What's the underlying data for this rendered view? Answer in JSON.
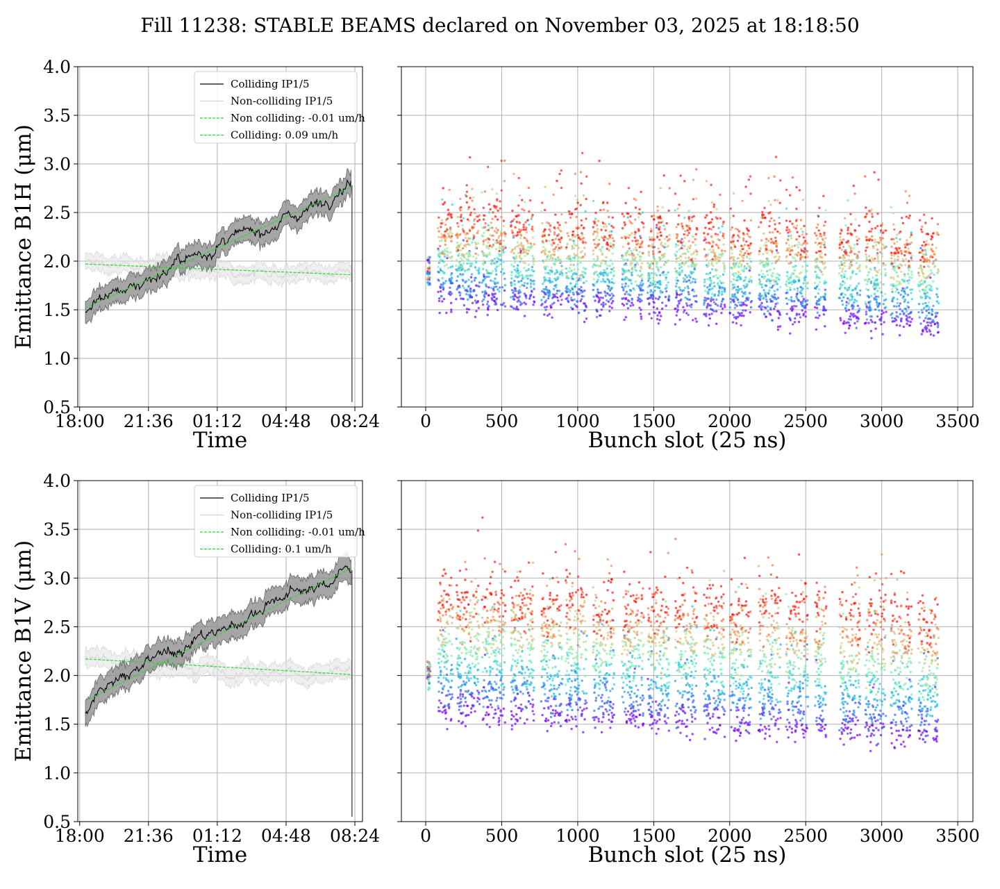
{
  "figure": {
    "title": "Fill 11238: STABLE BEAMS declared on November 03, 2025 at 18:18:50"
  },
  "chart_data": [
    {
      "id": "h-time",
      "type": "line",
      "xlabel": "Time",
      "ylabel": "Emittance B1H (μm)",
      "x_ticks": [
        "18:00",
        "21:36",
        "01:12",
        "04:48",
        "08:24"
      ],
      "x_ticks_hours": [
        0,
        3.6,
        7.2,
        10.8,
        14.4
      ],
      "xlim_hours": [
        -0.1,
        14.8
      ],
      "ylim": [
        0.5,
        4.0
      ],
      "y_ticks": [
        "0.5",
        "1.0",
        "1.5",
        "2.0",
        "2.5",
        "3.0",
        "3.5",
        "4.0"
      ],
      "y_tick_values": [
        0.5,
        1.0,
        1.5,
        2.0,
        2.5,
        3.0,
        3.5,
        4.0
      ],
      "grid": true,
      "legend_position": "top-right",
      "legend": [
        "Colliding IP1/5",
        "Non-colliding IP1/5",
        "Non colliding: -0.01 um/h",
        "Colliding: 0.09 um/h"
      ],
      "series": [
        {
          "name": "Colliding IP1/5",
          "style": "solid",
          "color": "#000000",
          "band_color": "#888888",
          "x_hours": [
            0.3,
            1,
            2,
            3,
            4,
            5,
            6,
            7,
            8,
            9,
            10,
            11,
            12,
            13,
            14,
            14.2
          ],
          "y": [
            1.45,
            1.62,
            1.7,
            1.76,
            1.86,
            1.96,
            2.05,
            2.13,
            2.22,
            2.3,
            2.37,
            2.45,
            2.55,
            2.65,
            2.82,
            2.78
          ],
          "band_halfwidth": 0.12
        },
        {
          "name": "Non-colliding IP1/5",
          "style": "solid",
          "color": "#d3d3d3",
          "band_color": "#e4e4e4",
          "x_hours": [
            0.3,
            1,
            2,
            3,
            4,
            5,
            6,
            7,
            8,
            9,
            10,
            11,
            12,
            13,
            14,
            14.2
          ],
          "y": [
            1.97,
            1.99,
            1.94,
            1.96,
            1.93,
            1.95,
            1.91,
            1.9,
            1.93,
            1.88,
            1.9,
            1.86,
            1.89,
            1.87,
            1.9,
            1.89
          ],
          "band_halfwidth": 0.08
        },
        {
          "name": "Non colliding: -0.01 um/h",
          "style": "dashed",
          "color": "#22dd22",
          "x_hours": [
            0.3,
            14.2
          ],
          "y": [
            1.97,
            1.86
          ]
        },
        {
          "name": "Colliding: 0.09 um/h",
          "style": "dashed",
          "color": "#22dd22",
          "x_hours": [
            0.3,
            14.2
          ],
          "y": [
            1.52,
            2.76
          ]
        }
      ]
    },
    {
      "id": "h-bunch",
      "type": "scatter",
      "xlabel": "Bunch slot (25 ns)",
      "ylabel": "",
      "x_ticks": [
        "0",
        "500",
        "1000",
        "1500",
        "2000",
        "2500",
        "3000",
        "3500"
      ],
      "x_tick_values": [
        0,
        500,
        1000,
        1500,
        2000,
        2500,
        3000,
        3500
      ],
      "xlim": [
        -160,
        3600
      ],
      "ylim": [
        0.5,
        4.0
      ],
      "grid": true,
      "colormap": "rainbow (violet = start of fill, red = end of fill)",
      "train_starts": [
        0,
        80,
        200,
        370,
        560,
        760,
        920,
        1100,
        1290,
        1460,
        1640,
        1830,
        2000,
        2190,
        2370,
        2560,
        2720,
        2890,
        3060,
        3240
      ],
      "train_slots": [
        40,
        100,
        155,
        155,
        155,
        140,
        140,
        140,
        145,
        145,
        145,
        140,
        145,
        145,
        145,
        75,
        140,
        140,
        140,
        135
      ],
      "first_train_level": [
        1.75,
        2.05
      ],
      "level_start": [
        1.62,
        1.62,
        1.62,
        1.6,
        1.58,
        1.56,
        1.55,
        1.55,
        1.55,
        1.54,
        1.53,
        1.5,
        1.48,
        1.47,
        1.46,
        1.45,
        1.42,
        1.4,
        1.38,
        1.32
      ],
      "level_end": [
        2.5,
        2.46,
        2.44,
        2.42,
        2.4,
        2.38,
        2.36,
        2.36,
        2.36,
        2.34,
        2.33,
        2.33,
        2.32,
        2.32,
        2.3,
        2.3,
        2.28,
        2.27,
        2.26,
        2.23
      ],
      "spread": 0.13
    },
    {
      "id": "v-time",
      "type": "line",
      "xlabel": "Time",
      "ylabel": "Emittance B1V (μm)",
      "x_ticks": [
        "18:00",
        "21:36",
        "01:12",
        "04:48",
        "08:24"
      ],
      "x_ticks_hours": [
        0,
        3.6,
        7.2,
        10.8,
        14.4
      ],
      "xlim_hours": [
        -0.1,
        14.8
      ],
      "ylim": [
        0.5,
        4.0
      ],
      "y_ticks": [
        "0.5",
        "1.0",
        "1.5",
        "2.0",
        "2.5",
        "3.0",
        "3.5",
        "4.0"
      ],
      "y_tick_values": [
        0.5,
        1.0,
        1.5,
        2.0,
        2.5,
        3.0,
        3.5,
        4.0
      ],
      "grid": true,
      "legend_position": "top-right",
      "legend": [
        "Colliding IP1/5",
        "Non-colliding IP1/5",
        "Non colliding: -0.01 um/h",
        "Colliding: 0.1 um/h"
      ],
      "series": [
        {
          "name": "Colliding IP1/5",
          "style": "solid",
          "color": "#000000",
          "band_color": "#888888",
          "x_hours": [
            0.3,
            1,
            2,
            3,
            4,
            5,
            6,
            7,
            8,
            9,
            10,
            11,
            12,
            13,
            14,
            14.2
          ],
          "y": [
            1.6,
            1.88,
            1.98,
            2.06,
            2.18,
            2.26,
            2.37,
            2.45,
            2.52,
            2.62,
            2.75,
            2.82,
            2.88,
            2.95,
            3.12,
            3.08
          ],
          "band_halfwidth": 0.13
        },
        {
          "name": "Non-colliding IP1/5",
          "style": "solid",
          "color": "#d3d3d3",
          "band_color": "#e4e4e4",
          "x_hours": [
            0.3,
            1,
            2,
            3,
            4,
            5,
            6,
            7,
            8,
            9,
            10,
            11,
            12,
            13,
            14,
            14.2
          ],
          "y": [
            2.2,
            2.18,
            2.14,
            2.14,
            2.1,
            2.12,
            2.08,
            2.1,
            2.05,
            2.06,
            2.03,
            2.05,
            2.0,
            2.02,
            2.04,
            2.02
          ],
          "band_halfwidth": 0.09
        },
        {
          "name": "Non colliding: -0.01 um/h",
          "style": "dashed",
          "color": "#22dd22",
          "x_hours": [
            0.3,
            14.2
          ],
          "y": [
            2.17,
            2.01
          ]
        },
        {
          "name": "Colliding: 0.1 um/h",
          "style": "dashed",
          "color": "#22dd22",
          "x_hours": [
            0.3,
            14.2
          ],
          "y": [
            1.74,
            3.1
          ]
        }
      ]
    },
    {
      "id": "v-bunch",
      "type": "scatter",
      "xlabel": "Bunch slot (25 ns)",
      "ylabel": "",
      "x_ticks": [
        "0",
        "500",
        "1000",
        "1500",
        "2000",
        "2500",
        "3000",
        "3500"
      ],
      "x_tick_values": [
        0,
        500,
        1000,
        1500,
        2000,
        2500,
        3000,
        3500
      ],
      "xlim": [
        -160,
        3600
      ],
      "ylim": [
        0.5,
        4.0
      ],
      "grid": true,
      "colormap": "rainbow (violet = start of fill, red = end of fill)",
      "train_starts": [
        0,
        80,
        200,
        370,
        560,
        760,
        920,
        1100,
        1290,
        1460,
        1640,
        1830,
        2000,
        2190,
        2370,
        2560,
        2720,
        2890,
        3060,
        3240
      ],
      "train_slots": [
        40,
        100,
        155,
        155,
        155,
        140,
        140,
        140,
        145,
        145,
        145,
        140,
        145,
        145,
        145,
        75,
        140,
        140,
        140,
        135
      ],
      "first_train_level": [
        1.85,
        2.15
      ],
      "level_start": [
        1.7,
        1.68,
        1.66,
        1.64,
        1.62,
        1.6,
        1.58,
        1.57,
        1.56,
        1.55,
        1.54,
        1.52,
        1.5,
        1.48,
        1.47,
        1.46,
        1.45,
        1.43,
        1.41,
        1.38
      ],
      "level_end": [
        2.82,
        2.84,
        2.82,
        2.8,
        2.8,
        2.78,
        2.78,
        2.76,
        2.76,
        2.74,
        2.74,
        2.72,
        2.72,
        2.72,
        2.72,
        2.7,
        2.66,
        2.64,
        2.62,
        2.6
      ],
      "spread": 0.14
    }
  ]
}
